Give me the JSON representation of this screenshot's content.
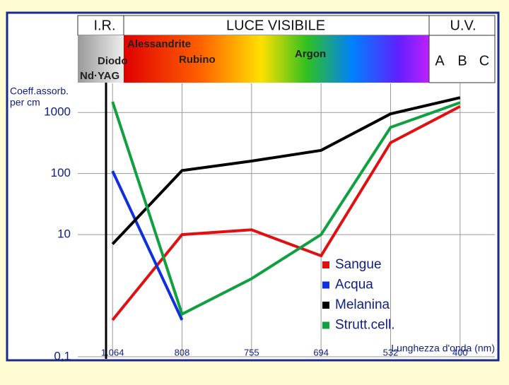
{
  "spectrum": {
    "bands": [
      "I.R.",
      "LUCE VISIBILE",
      "U.V."
    ],
    "lasers": [
      "Alessandrite",
      "Diodo",
      "Nd·YAG",
      "Rubino",
      "Argon"
    ],
    "uv_bands": [
      "A",
      "B",
      "C"
    ]
  },
  "chart_data": {
    "type": "line",
    "y_label": [
      "Coeff.assorb.",
      "per cm"
    ],
    "x_label": "Lunghezza d'onda (nm)",
    "categories": [
      "1.064",
      "808",
      "755",
      "694",
      "532",
      "400"
    ],
    "log_y": true,
    "grid": true,
    "ylim": [
      0.1,
      3000
    ],
    "yticks": [
      1000,
      100,
      10,
      {
        "value": 0.1,
        "label": "0,1"
      }
    ],
    "series": [
      {
        "name": "Sangue",
        "color": "#e01010",
        "values": [
          0.4,
          10,
          12,
          4.5,
          320,
          1260
        ]
      },
      {
        "name": "Acqua",
        "color": "#1030e0",
        "values": [
          110,
          0.4,
          null,
          null,
          null,
          null
        ]
      },
      {
        "name": "Melanina",
        "color": "#000000",
        "values": [
          7,
          112,
          160,
          240,
          950,
          1750
        ]
      },
      {
        "name": "Strutt.cell.",
        "color": "#10a040",
        "values": [
          1500,
          0.5,
          1.9,
          10,
          570,
          1450
        ]
      }
    ]
  }
}
